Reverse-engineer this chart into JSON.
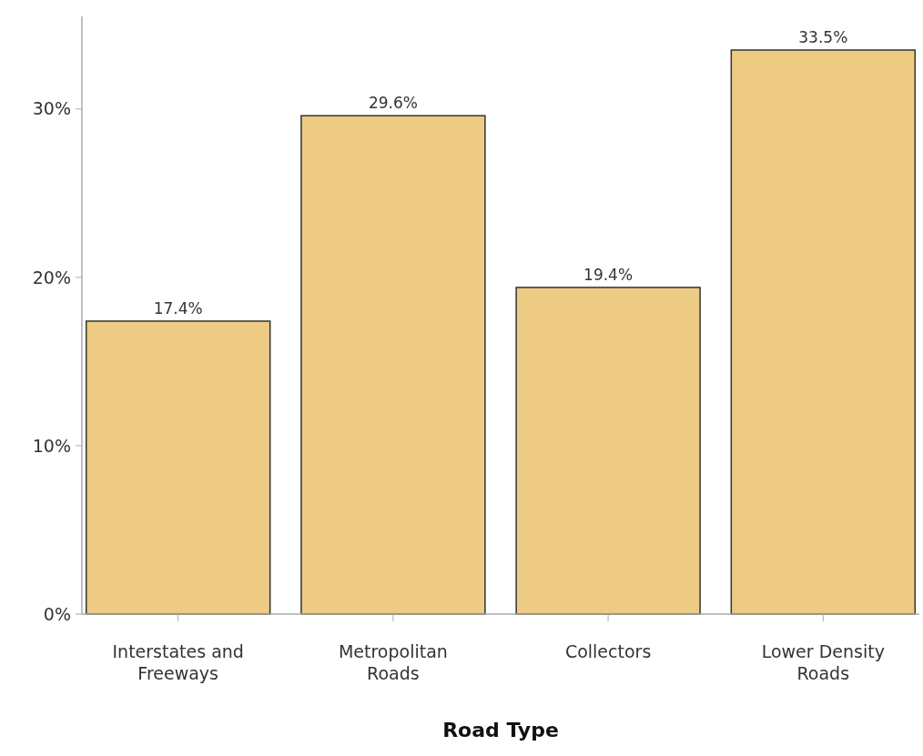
{
  "chart_data": {
    "type": "bar",
    "xlabel": "Road Type",
    "categories": [
      "Interstates and\nFreeways",
      "Metropolitan\nRoads",
      "Collectors",
      "Lower Density\nRoads"
    ],
    "values": [
      17.4,
      29.6,
      19.4,
      33.5
    ],
    "value_labels": [
      "17.4%",
      "29.6%",
      "19.4%",
      "33.5%"
    ],
    "color": "#edcb82",
    "ylim": [
      0,
      35.5
    ],
    "yticks": [
      {
        "value": 0,
        "label": "0%"
      },
      {
        "value": 10,
        "label": "10%"
      },
      {
        "value": 20,
        "label": "20%"
      },
      {
        "value": 30,
        "label": "30%"
      }
    ],
    "grid": false
  }
}
